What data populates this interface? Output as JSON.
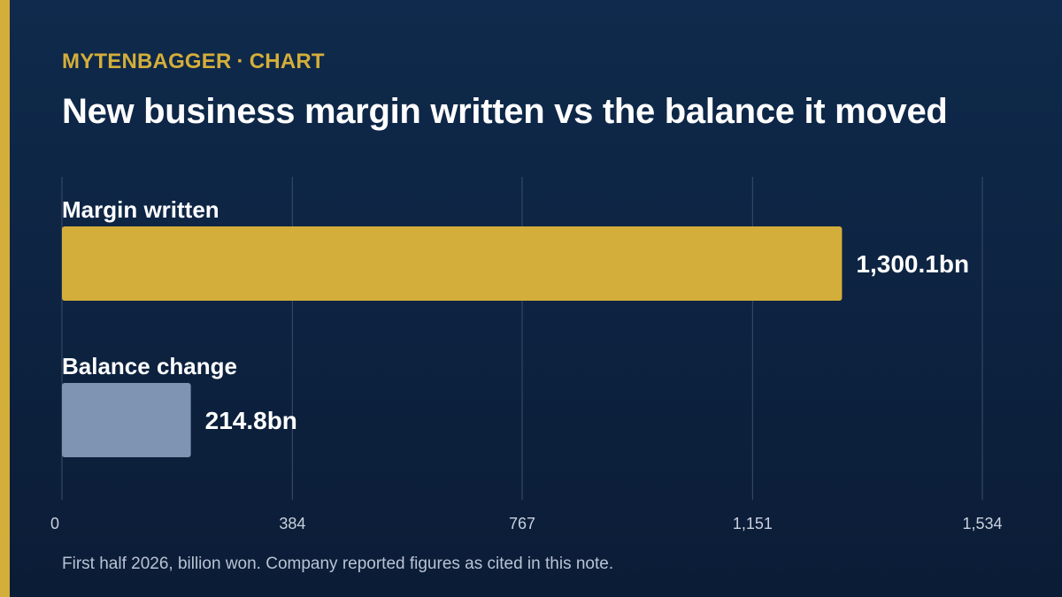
{
  "header": {
    "brand": "MYTENBAGGER",
    "separator": "·",
    "section": "CHART",
    "title": "New business margin written vs the balance it moved"
  },
  "footnote": "First half 2026, billion won. Company reported figures as cited in this note.",
  "colors": {
    "accent": "#d4ae3a",
    "background_top": "#0f2a4c",
    "background_bottom": "#0b1c36",
    "bar_primary": "#d4ae3a",
    "bar_secondary": "#7f93b2",
    "gridline": "#3a4d6a",
    "text": "#ffffff",
    "tick_text": "#c9d1de"
  },
  "chart_data": {
    "type": "bar",
    "orientation": "horizontal",
    "title": "New business margin written vs the balance it moved",
    "categories": [
      "Margin written",
      "Balance change"
    ],
    "values": [
      1300.1,
      214.8
    ],
    "value_labels": [
      "1,300.1bn",
      "214.8bn"
    ],
    "bar_colors": [
      "#d4ae3a",
      "#7f93b2"
    ],
    "xlim": [
      0,
      1534
    ],
    "xticks": [
      0,
      384,
      767,
      1151,
      1534
    ],
    "xtick_labels": [
      "0",
      "384",
      "767",
      "1,151",
      "1,534"
    ],
    "xlabel": "",
    "ylabel": "",
    "grid": true,
    "legend": "none"
  }
}
